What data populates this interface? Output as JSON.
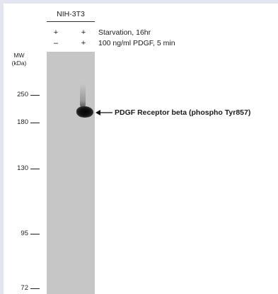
{
  "cell_line": "NIH-3T3",
  "conditions": [
    {
      "label": "Starvation, 16hr",
      "lanes": [
        "+",
        "+"
      ]
    },
    {
      "label": "100 ng/ml PDGF, 5 min",
      "lanes": [
        "–",
        "+"
      ]
    }
  ],
  "mw_label": "MW\n(kDa)",
  "markers": [
    "250",
    "180",
    "130",
    "95",
    "72"
  ],
  "band_label": "PDGF  Receptor beta (phospho Tyr857)",
  "colors": {
    "membrane": "#c6c6c6",
    "band": "#0a0a0a",
    "frame": "#e3e6f1"
  }
}
